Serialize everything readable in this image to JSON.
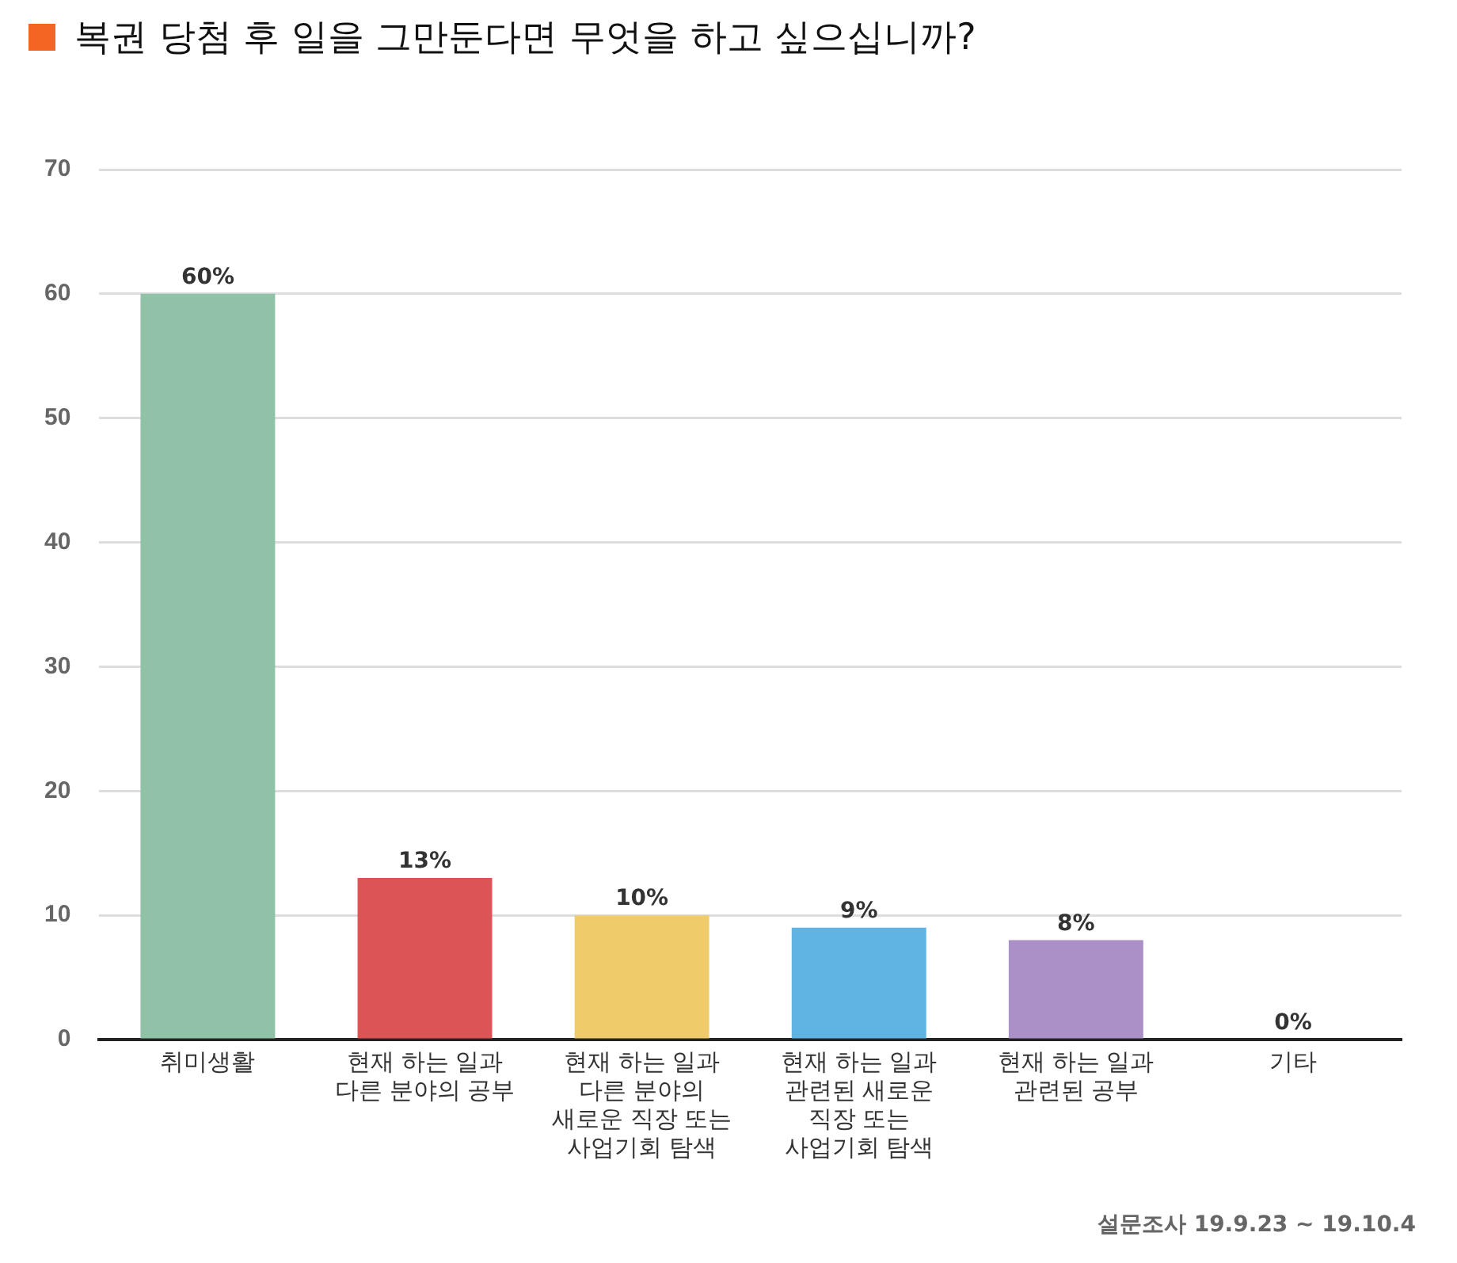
{
  "chart_data": {
    "type": "bar",
    "title": "복권 당첨 후 일을 그만둔다면 무엇을 하고 싶으십니까?",
    "categories": [
      "취미생활",
      "현재 하는 일과 다른 분야의 공부",
      "현재 하는 일과 다른 분야의 새로운 직장 또는 사업기회 탐색",
      "현재 하는 일과 관련된 새로운 직장 또는 사업기회 탐색",
      "현재 하는 일과 관련된 공부",
      "기타"
    ],
    "values": [
      60,
      13,
      10,
      9,
      8,
      0
    ],
    "colors": [
      "#8fc2a6",
      "#dc5455",
      "#efcb6a",
      "#5fb4e4",
      "#ab8fc7",
      "#999999"
    ],
    "value_labels": [
      "60%",
      "13%",
      "10%",
      "9%",
      "8%",
      "0%"
    ],
    "ylim": [
      0,
      70
    ],
    "yticks": [
      0,
      10,
      20,
      30,
      40,
      50,
      60,
      70
    ],
    "grid": "y",
    "legend": false,
    "annotations": [
      "설문조사 19.9.23 ~ 19.10.4"
    ]
  }
}
